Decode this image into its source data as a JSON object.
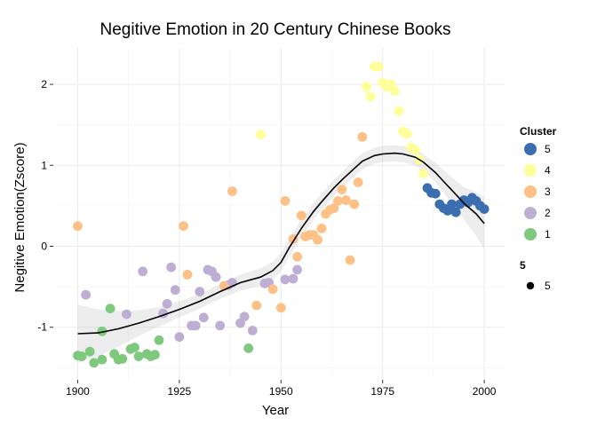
{
  "chart_data": {
    "type": "scatter",
    "title": "Negitive Emotion in 20 Century Chinese Books",
    "xlabel": "Year",
    "ylabel": "Negitive Emotion(Zscore)",
    "xlim": [
      1894,
      2005
    ],
    "ylim": [
      -1.65,
      2.45
    ],
    "x_ticks": [
      1900,
      1925,
      1950,
      1975,
      2000
    ],
    "y_ticks": [
      -1,
      0,
      1,
      2
    ],
    "x_tick_labels": [
      "1900",
      "1925",
      "1950",
      "1975",
      "2000"
    ],
    "y_tick_labels": [
      "-1",
      "0",
      "1",
      "2"
    ],
    "grid": true,
    "legend_position": "right",
    "legend": {
      "title": "Cluster",
      "entries": [
        {
          "label": "5",
          "color": "#3a6eb0"
        },
        {
          "label": "4",
          "color": "#ffff99"
        },
        {
          "label": "3",
          "color": "#fdc086"
        },
        {
          "label": "2",
          "color": "#beaed4"
        },
        {
          "label": "1",
          "color": "#7fc97f"
        }
      ],
      "size_title": "5",
      "size_entry": "5"
    },
    "series": [
      {
        "name": "1",
        "color": "#7fc97f",
        "points": [
          [
            1900,
            -1.35
          ],
          [
            1901,
            -1.36
          ],
          [
            1903,
            -1.3
          ],
          [
            1904,
            -1.44
          ],
          [
            1906,
            -1.05
          ],
          [
            1906,
            -1.4
          ],
          [
            1908,
            -0.77
          ],
          [
            1909,
            -1.33
          ],
          [
            1910,
            -1.4
          ],
          [
            1911,
            -1.39
          ],
          [
            1913,
            -1.27
          ],
          [
            1914,
            -1.25
          ],
          [
            1915,
            -1.36
          ],
          [
            1917,
            -1.33
          ],
          [
            1918,
            -1.36
          ],
          [
            1919,
            -1.34
          ],
          [
            1920,
            -1.16
          ],
          [
            1942,
            -1.26
          ]
        ]
      },
      {
        "name": "2",
        "color": "#beaed4",
        "points": [
          [
            1902,
            -0.6
          ],
          [
            1912,
            -0.84
          ],
          [
            1916,
            -0.31
          ],
          [
            1921,
            -0.83
          ],
          [
            1922,
            -0.71
          ],
          [
            1923,
            -0.26
          ],
          [
            1924,
            -0.54
          ],
          [
            1925,
            -1.12
          ],
          [
            1928,
            -0.98
          ],
          [
            1929,
            -0.98
          ],
          [
            1930,
            -0.56
          ],
          [
            1931,
            -0.88
          ],
          [
            1932,
            -0.29
          ],
          [
            1933,
            -0.31
          ],
          [
            1934,
            -0.38
          ],
          [
            1935,
            -0.98
          ],
          [
            1937,
            -0.48
          ],
          [
            1938,
            -0.45
          ],
          [
            1940,
            -0.95
          ],
          [
            1941,
            -0.87
          ],
          [
            1943,
            -1.04
          ],
          [
            1946,
            -0.46
          ],
          [
            1947,
            -0.45
          ],
          [
            1951,
            -0.41
          ],
          [
            1953,
            -0.4
          ],
          [
            1954,
            -0.29
          ]
        ]
      },
      {
        "name": "3",
        "color": "#fdc086",
        "points": [
          [
            1900,
            0.25
          ],
          [
            1926,
            0.25
          ],
          [
            1927,
            -0.35
          ],
          [
            1936,
            -0.49
          ],
          [
            1938,
            0.68
          ],
          [
            1944,
            -0.73
          ],
          [
            1948,
            -0.53
          ],
          [
            1950,
            -0.76
          ],
          [
            1951,
            0.56
          ],
          [
            1953,
            0.09
          ],
          [
            1954,
            -0.13
          ],
          [
            1955,
            0.38
          ],
          [
            1956,
            0.12
          ],
          [
            1957,
            0.14
          ],
          [
            1958,
            0.14
          ],
          [
            1959,
            0.08
          ],
          [
            1960,
            0.22
          ],
          [
            1961,
            0.4
          ],
          [
            1962,
            0.45
          ],
          [
            1963,
            0.47
          ],
          [
            1964,
            0.56
          ],
          [
            1965,
            0.7
          ],
          [
            1966,
            0.57
          ],
          [
            1967,
            -0.17
          ],
          [
            1968,
            0.52
          ],
          [
            1969,
            0.79
          ],
          [
            1970,
            1.35
          ]
        ]
      },
      {
        "name": "4",
        "color": "#ffff99",
        "points": [
          [
            1945,
            1.38
          ],
          [
            1971,
            1.97
          ],
          [
            1972,
            1.85
          ],
          [
            1973,
            2.22
          ],
          [
            1974,
            2.22
          ],
          [
            1975,
            2.02
          ],
          [
            1976,
            1.97
          ],
          [
            1977,
            2.0
          ],
          [
            1978,
            1.92
          ],
          [
            1979,
            1.67
          ],
          [
            1980,
            1.42
          ],
          [
            1981,
            1.39
          ],
          [
            1982,
            1.22
          ],
          [
            1983,
            1.19
          ],
          [
            1984,
            1.07
          ],
          [
            1985,
            0.9
          ]
        ]
      },
      {
        "name": "5",
        "color": "#3a6eb0",
        "points": [
          [
            1986,
            0.72
          ],
          [
            1987,
            0.66
          ],
          [
            1988,
            0.65
          ],
          [
            1989,
            0.52
          ],
          [
            1990,
            0.47
          ],
          [
            1991,
            0.44
          ],
          [
            1992,
            0.52
          ],
          [
            1993,
            0.42
          ],
          [
            1994,
            0.52
          ],
          [
            1995,
            0.57
          ],
          [
            1996,
            0.54
          ],
          [
            1997,
            0.6
          ],
          [
            1998,
            0.56
          ],
          [
            1999,
            0.5
          ],
          [
            2000,
            0.46
          ]
        ]
      }
    ],
    "smooth": {
      "x": [
        1900,
        1905,
        1910,
        1915,
        1920,
        1925,
        1930,
        1935,
        1940,
        1945,
        1948,
        1950,
        1952,
        1955,
        1958,
        1960,
        1963,
        1965,
        1968,
        1970,
        1973,
        1975,
        1978,
        1980,
        1983,
        1985,
        1988,
        1990,
        1993,
        1995,
        1998,
        2000
      ],
      "y": [
        -1.08,
        -1.07,
        -1.02,
        -0.95,
        -0.87,
        -0.78,
        -0.68,
        -0.56,
        -0.45,
        -0.38,
        -0.3,
        -0.2,
        -0.02,
        0.22,
        0.43,
        0.55,
        0.72,
        0.82,
        0.96,
        1.05,
        1.12,
        1.14,
        1.15,
        1.14,
        1.1,
        1.04,
        0.91,
        0.8,
        0.64,
        0.53,
        0.4,
        0.28
      ],
      "band_halfwidth": [
        0.36,
        0.29,
        0.22,
        0.16,
        0.12,
        0.1,
        0.09,
        0.09,
        0.1,
        0.11,
        0.11,
        0.11,
        0.11,
        0.11,
        0.1,
        0.1,
        0.1,
        0.1,
        0.1,
        0.1,
        0.1,
        0.1,
        0.1,
        0.1,
        0.1,
        0.1,
        0.12,
        0.14,
        0.17,
        0.2,
        0.27,
        0.32
      ]
    }
  }
}
